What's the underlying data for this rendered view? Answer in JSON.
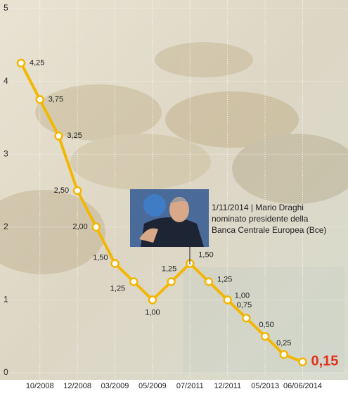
{
  "chart_data": {
    "type": "line",
    "categories": [
      null,
      "10/2008",
      null,
      "12/2008",
      null,
      "03/2009",
      null,
      "05/2009",
      null,
      "07/2011",
      null,
      "12/2011",
      null,
      "05/2013",
      null,
      "06/06/2014"
    ],
    "series": [
      {
        "color": "#f2b705",
        "values": [
          4.25,
          3.75,
          3.25,
          2.5,
          2.0,
          1.5,
          1.25,
          1.0,
          1.25,
          1.5,
          1.25,
          1.0,
          0.75,
          0.5,
          0.25,
          0.15
        ],
        "value_labels": [
          "4,25",
          "3,75",
          "3,25",
          "2,50",
          "2,00",
          "1,50",
          "1,25",
          "1,00",
          "1,25",
          "1,50",
          "1,25",
          "1,00",
          "0,75",
          "0,50",
          "0,25",
          "0,15"
        ]
      }
    ],
    "ylim": [
      0,
      5
    ],
    "yticks": [
      0,
      1,
      2,
      3,
      4,
      5
    ],
    "grid": true,
    "annotation": [
      "1/11/2014 | Mario Draghi",
      "nominato presidente della",
      "Banca Centrale Europea (Bce)"
    ],
    "highlight_color": "#e3301c"
  }
}
